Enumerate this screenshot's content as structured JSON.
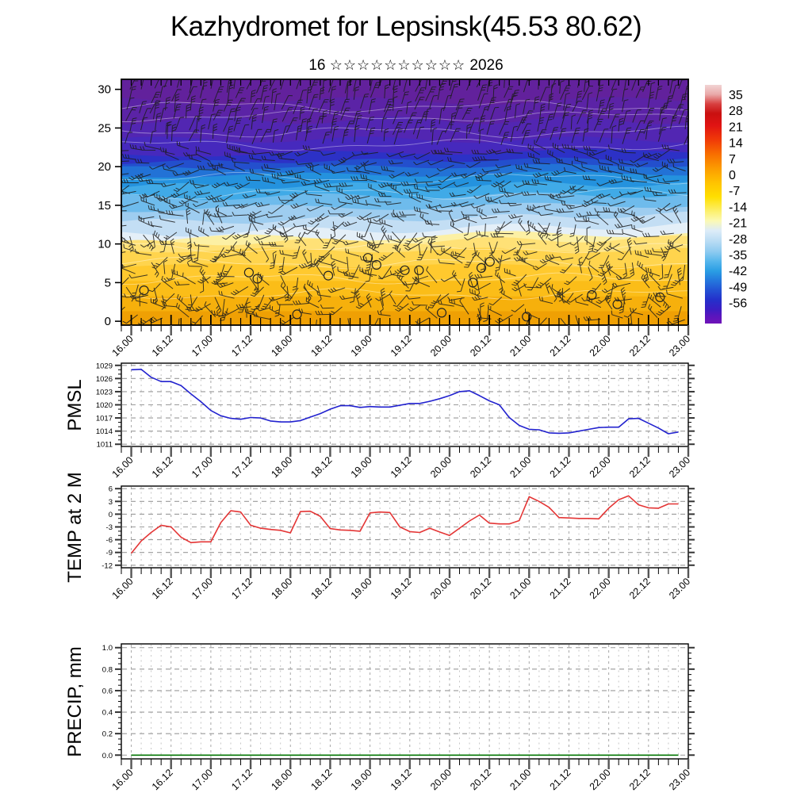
{
  "title": "Kazhydromet for Lepsinsk(45.53 80.62)",
  "subtitle": {
    "day": "16",
    "stars": "☆☆☆☆☆☆☆☆☆☆",
    "year": "2026"
  },
  "time_axis": {
    "labels": [
      "16.00",
      "16.12",
      "17.00",
      "17.12",
      "18.00",
      "18.12",
      "19.00",
      "19.12",
      "20.00",
      "20.12",
      "21.00",
      "21.12",
      "22.00",
      "22.12",
      "23.00"
    ],
    "domain_hours": [
      -3,
      168
    ],
    "minor_step_hours": 3,
    "major_step_hours": 12,
    "series_start_hour": 0,
    "series_step_hours": 3
  },
  "chart_data": [
    {
      "id": "cross-section",
      "type": "heatmap",
      "title": "",
      "ylabel": "height",
      "ylim": [
        0,
        30
      ],
      "yticks": [
        0,
        5,
        10,
        15,
        20,
        25,
        30
      ],
      "overlay": "wind-barbs",
      "colorbar": {
        "labels": [
          35,
          28,
          21,
          14,
          7,
          0,
          -7,
          -14,
          -21,
          -28,
          -35,
          -42,
          -49,
          -56
        ],
        "stops": [
          [
            0,
            "#f2d4d4"
          ],
          [
            0.04,
            "#e9a9a9"
          ],
          [
            0.08,
            "#d84040"
          ],
          [
            0.12,
            "#c91010"
          ],
          [
            0.17,
            "#e01313"
          ],
          [
            0.23,
            "#f03a08"
          ],
          [
            0.29,
            "#f86e00"
          ],
          [
            0.35,
            "#fc9c00"
          ],
          [
            0.41,
            "#ffc300"
          ],
          [
            0.47,
            "#ffdf00"
          ],
          [
            0.53,
            "#fcf06e"
          ],
          [
            0.57,
            "#fbf9b5"
          ],
          [
            0.61,
            "#ddecf8"
          ],
          [
            0.655,
            "#b9dcf4"
          ],
          [
            0.7,
            "#8dcaf0"
          ],
          [
            0.74,
            "#55b6ec"
          ],
          [
            0.78,
            "#2a9ee4"
          ],
          [
            0.82,
            "#2477dd"
          ],
          [
            0.86,
            "#2352d4"
          ],
          [
            0.9,
            "#2430cb"
          ],
          [
            0.94,
            "#3b1ec3"
          ],
          [
            0.97,
            "#5b15bd"
          ],
          [
            1,
            "#7013b8"
          ]
        ]
      },
      "bands": [
        {
          "top": 1.3,
          "color": "#efa004"
        },
        {
          "top": 3.2,
          "color": "#f6b00c"
        },
        {
          "top": 5.2,
          "color": "#fbbd18"
        },
        {
          "top": 7.2,
          "color": "#ffc92e",
          "wave": 0.25
        },
        {
          "top": 9.2,
          "color": "#ffd44d",
          "wave": 0.3
        },
        {
          "top": 10.4,
          "color": "#ffe176",
          "wave": 0.4,
          "slope": 0.6
        },
        {
          "top": 11.0,
          "color": "#fcf0a4",
          "wave": 0.5,
          "slope": 1.0
        },
        {
          "top": 11.9,
          "color": "#e4eff8",
          "wave": 0.5,
          "slope": 1.2
        },
        {
          "top": 13.3,
          "color": "#c3def4",
          "wave": 0.4,
          "slope": 1.0
        },
        {
          "top": 14.8,
          "color": "#9ecdf0",
          "wave": 0.4,
          "slope": 0.6
        },
        {
          "top": 16.2,
          "color": "#6ebbec",
          "wave": 0.4,
          "slope": 0.4
        },
        {
          "top": 17.6,
          "color": "#40aae7",
          "wave": 0.4,
          "slope": 0.3
        },
        {
          "top": 19.0,
          "color": "#2492de",
          "wave": 0.3,
          "slope": 0.3
        },
        {
          "top": 20.0,
          "color": "#2272d6",
          "wave": 0.25,
          "slope": 0.4
        },
        {
          "top": 20.8,
          "color": "#234fcd",
          "wave": 0.25,
          "slope": 0.5
        },
        {
          "top": 21.8,
          "color": "#2c31c6",
          "wave": 0.3,
          "slope": 0.6
        },
        {
          "top": 23.5,
          "color": "#4629bd",
          "wave": 0.4
        },
        {
          "top": 26.0,
          "color": "#5226b2",
          "wave": 0.5
        },
        {
          "top": 28.5,
          "color": "#5b23a6",
          "wave": 0.5
        },
        {
          "top": 31.3,
          "color": "#62219c"
        }
      ],
      "contour_altitudes": [
        3.5,
        5.5,
        7.5,
        9.5,
        16.5,
        18.5,
        22.8,
        24.5,
        26.5,
        27.8
      ],
      "calm_circles": [
        [
          0.04,
          4.0
        ],
        [
          0.225,
          6.3
        ],
        [
          0.24,
          5.5
        ],
        [
          0.31,
          0.9
        ],
        [
          0.365,
          5.9
        ],
        [
          0.435,
          8.2
        ],
        [
          0.45,
          7.3
        ],
        [
          0.5,
          6.6
        ],
        [
          0.525,
          6.6
        ],
        [
          0.565,
          1.1
        ],
        [
          0.62,
          5.0
        ],
        [
          0.635,
          6.9
        ],
        [
          0.65,
          7.7
        ],
        [
          0.715,
          0.6
        ],
        [
          0.83,
          3.4
        ],
        [
          0.875,
          2.2
        ],
        [
          0.95,
          3.1
        ]
      ]
    },
    {
      "id": "pmsl",
      "type": "line",
      "title": "PMSL",
      "color": "#2222cf",
      "ylim": [
        1010.5,
        1029.5
      ],
      "yticks": [
        1011,
        1014,
        1017,
        1020,
        1023,
        1026,
        1029
      ],
      "ytick_labels": [
        "1011",
        "1014",
        "1017",
        "1020",
        "1023",
        "1026",
        "1029"
      ],
      "minor_step": 1,
      "values": [
        1028.0,
        1028.1,
        1026.3,
        1025.3,
        1025.3,
        1024.4,
        1022.5,
        1020.7,
        1018.7,
        1017.5,
        1016.9,
        1016.7,
        1017.1,
        1017.0,
        1016.3,
        1016.1,
        1016.1,
        1016.4,
        1017.2,
        1018.0,
        1019.0,
        1019.8,
        1019.8,
        1019.4,
        1019.6,
        1019.5,
        1019.5,
        1019.9,
        1020.3,
        1020.3,
        1020.8,
        1021.4,
        1022.1,
        1023.0,
        1023.2,
        1022.1,
        1020.9,
        1020.0,
        1017.1,
        1015.3,
        1014.4,
        1014.3,
        1013.6,
        1013.5,
        1013.6,
        1014.0,
        1014.4,
        1014.8,
        1014.9,
        1014.9,
        1016.8,
        1016.9,
        1015.8,
        1014.7,
        1013.4,
        1013.8
      ]
    },
    {
      "id": "temp",
      "type": "line",
      "title": "TEMP at 2 M",
      "color": "#e43535",
      "ylim": [
        -12.6,
        6.6
      ],
      "yticks": [
        -12,
        -9,
        -6,
        -3,
        0,
        3,
        6
      ],
      "ytick_labels": [
        "-12",
        "-9",
        "-6",
        "-3",
        "0",
        "3",
        "6"
      ],
      "minor_step": 1,
      "values": [
        -9.2,
        -6.3,
        -4.3,
        -2.6,
        -3.0,
        -5.4,
        -6.7,
        -6.5,
        -6.5,
        -2.0,
        0.8,
        0.5,
        -2.6,
        -3.3,
        -3.6,
        -3.8,
        -4.4,
        0.6,
        0.7,
        -0.5,
        -3.4,
        -3.7,
        -3.8,
        -4.0,
        0.3,
        0.5,
        0.4,
        -3.0,
        -4.1,
        -4.3,
        -3.3,
        -4.2,
        -5.0,
        -3.3,
        -1.6,
        -0.2,
        -2.1,
        -2.3,
        -2.3,
        -1.5,
        4.1,
        3.0,
        1.6,
        -0.8,
        -0.9,
        -1.0,
        -1.0,
        -1.1,
        1.4,
        3.4,
        4.3,
        2.2,
        1.5,
        1.4,
        2.4,
        2.4
      ]
    },
    {
      "id": "precip",
      "type": "line",
      "title": "PRECIP, mm",
      "color": "#067806",
      "ylim": [
        -0.035,
        1.035
      ],
      "yticks": [
        0,
        0.2,
        0.4,
        0.6,
        0.8,
        1
      ],
      "ytick_labels": [
        "0.0",
        "0.2",
        "0.4",
        "0.6",
        "0.8",
        "1.0"
      ],
      "minor_step": 0.05,
      "values": [
        0,
        0,
        0,
        0,
        0,
        0,
        0,
        0,
        0,
        0,
        0,
        0,
        0,
        0,
        0,
        0,
        0,
        0,
        0,
        0,
        0,
        0,
        0,
        0,
        0,
        0,
        0,
        0,
        0,
        0,
        0,
        0,
        0,
        0,
        0,
        0,
        0,
        0,
        0,
        0,
        0,
        0,
        0,
        0,
        0,
        0,
        0,
        0,
        0,
        0,
        0,
        0,
        0,
        0,
        0,
        0
      ]
    }
  ]
}
